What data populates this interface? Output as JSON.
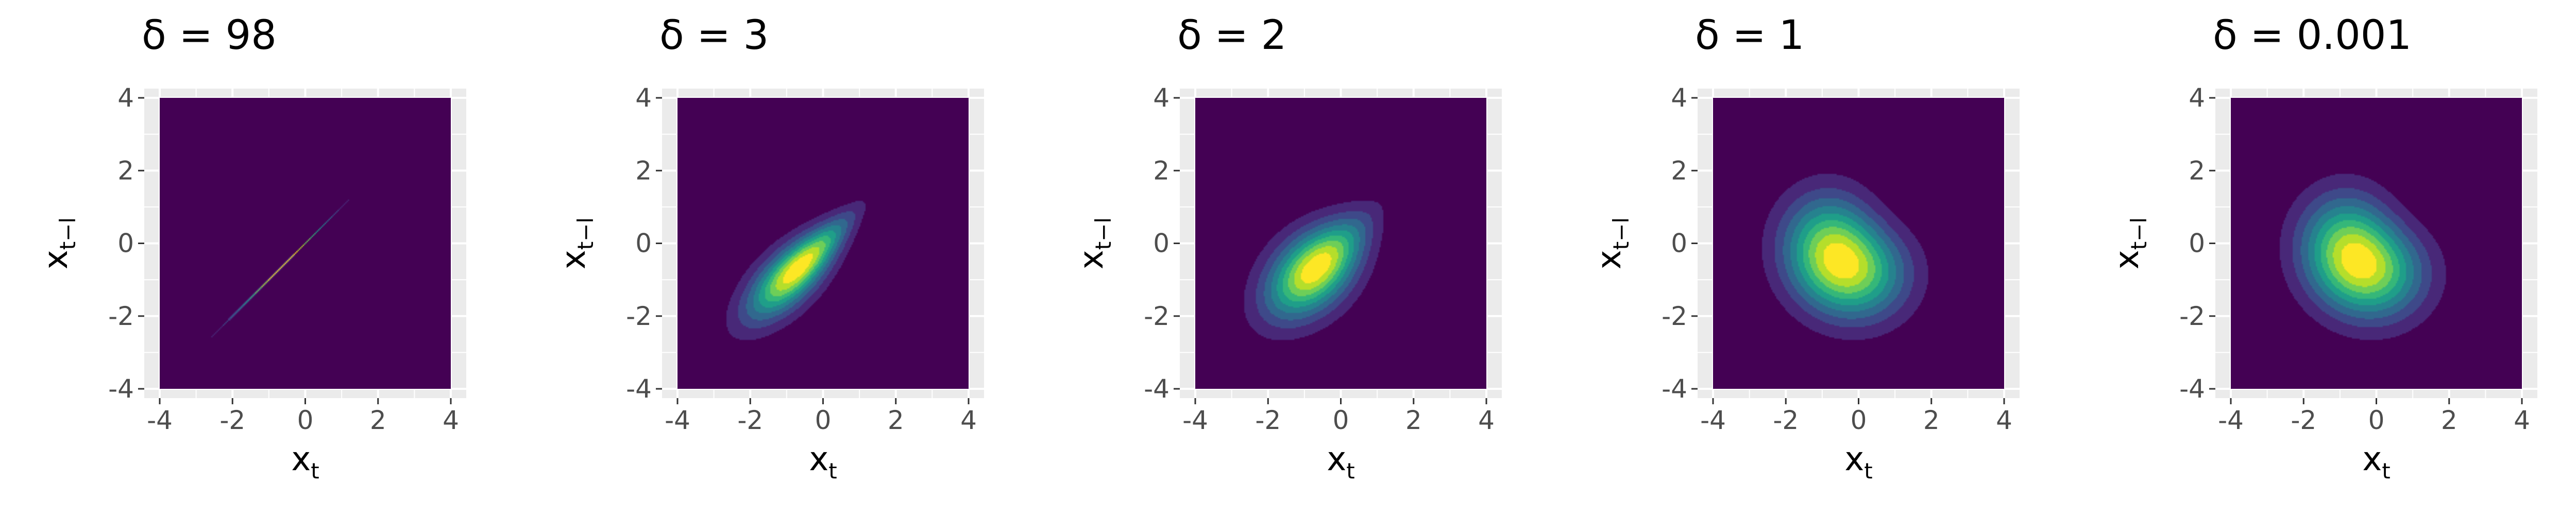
{
  "chart_data": [
    {
      "type": "heatmap",
      "title": "δ = 98",
      "delta": 98,
      "xlabel": "x",
      "xlabel_sub": "t",
      "ylabel": "x",
      "ylabel_sub": "t−l",
      "xlim": [
        -4,
        4
      ],
      "ylim": [
        -4,
        4
      ],
      "xticks": [
        "-4",
        "-2",
        "0",
        "2",
        "4"
      ],
      "yticks": [
        "-4",
        "-2",
        "0",
        "2",
        "4"
      ],
      "grid": true,
      "levels": 10,
      "colormap": [
        "#440154",
        "#482878",
        "#3e4989",
        "#31688e",
        "#26828e",
        "#1f9e89",
        "#35b779",
        "#6ece58",
        "#b5de2b",
        "#fde725"
      ]
    },
    {
      "type": "heatmap",
      "title": "δ = 3",
      "delta": 3,
      "xlabel": "x",
      "xlabel_sub": "t",
      "ylabel": "x",
      "ylabel_sub": "t−l",
      "xlim": [
        -4,
        4
      ],
      "ylim": [
        -4,
        4
      ],
      "xticks": [
        "-4",
        "-2",
        "0",
        "2",
        "4"
      ],
      "yticks": [
        "-4",
        "-2",
        "0",
        "2",
        "4"
      ],
      "grid": true,
      "levels": 10,
      "colormap": [
        "#440154",
        "#482878",
        "#3e4989",
        "#31688e",
        "#26828e",
        "#1f9e89",
        "#35b779",
        "#6ece58",
        "#b5de2b",
        "#fde725"
      ]
    },
    {
      "type": "heatmap",
      "title": "δ = 2",
      "delta": 2,
      "xlabel": "x",
      "xlabel_sub": "t",
      "ylabel": "x",
      "ylabel_sub": "t−l",
      "xlim": [
        -4,
        4
      ],
      "ylim": [
        -4,
        4
      ],
      "xticks": [
        "-4",
        "-2",
        "0",
        "2",
        "4"
      ],
      "yticks": [
        "-4",
        "-2",
        "0",
        "2",
        "4"
      ],
      "grid": true,
      "levels": 10,
      "colormap": [
        "#440154",
        "#482878",
        "#3e4989",
        "#31688e",
        "#26828e",
        "#1f9e89",
        "#35b779",
        "#6ece58",
        "#b5de2b",
        "#fde725"
      ]
    },
    {
      "type": "heatmap",
      "title": "δ = 1",
      "delta": 1,
      "xlabel": "x",
      "xlabel_sub": "t",
      "ylabel": "x",
      "ylabel_sub": "t−l",
      "xlim": [
        -4,
        4
      ],
      "ylim": [
        -4,
        4
      ],
      "xticks": [
        "-4",
        "-2",
        "0",
        "2",
        "4"
      ],
      "yticks": [
        "-4",
        "-2",
        "0",
        "2",
        "4"
      ],
      "grid": true,
      "levels": 10,
      "colormap": [
        "#440154",
        "#482878",
        "#3e4989",
        "#31688e",
        "#26828e",
        "#1f9e89",
        "#35b779",
        "#6ece58",
        "#b5de2b",
        "#fde725"
      ]
    },
    {
      "type": "heatmap",
      "title": "δ = 0.001",
      "delta": 0.001,
      "xlabel": "x",
      "xlabel_sub": "t",
      "ylabel": "x",
      "ylabel_sub": "t−l",
      "xlim": [
        -4,
        4
      ],
      "ylim": [
        -4,
        4
      ],
      "xticks": [
        "-4",
        "-2",
        "0",
        "2",
        "4"
      ],
      "yticks": [
        "-4",
        "-2",
        "0",
        "2",
        "4"
      ],
      "grid": true,
      "levels": 10,
      "colormap": [
        "#440154",
        "#482878",
        "#3e4989",
        "#31688e",
        "#26828e",
        "#1f9e89",
        "#35b779",
        "#6ece58",
        "#b5de2b",
        "#fde725"
      ]
    }
  ]
}
